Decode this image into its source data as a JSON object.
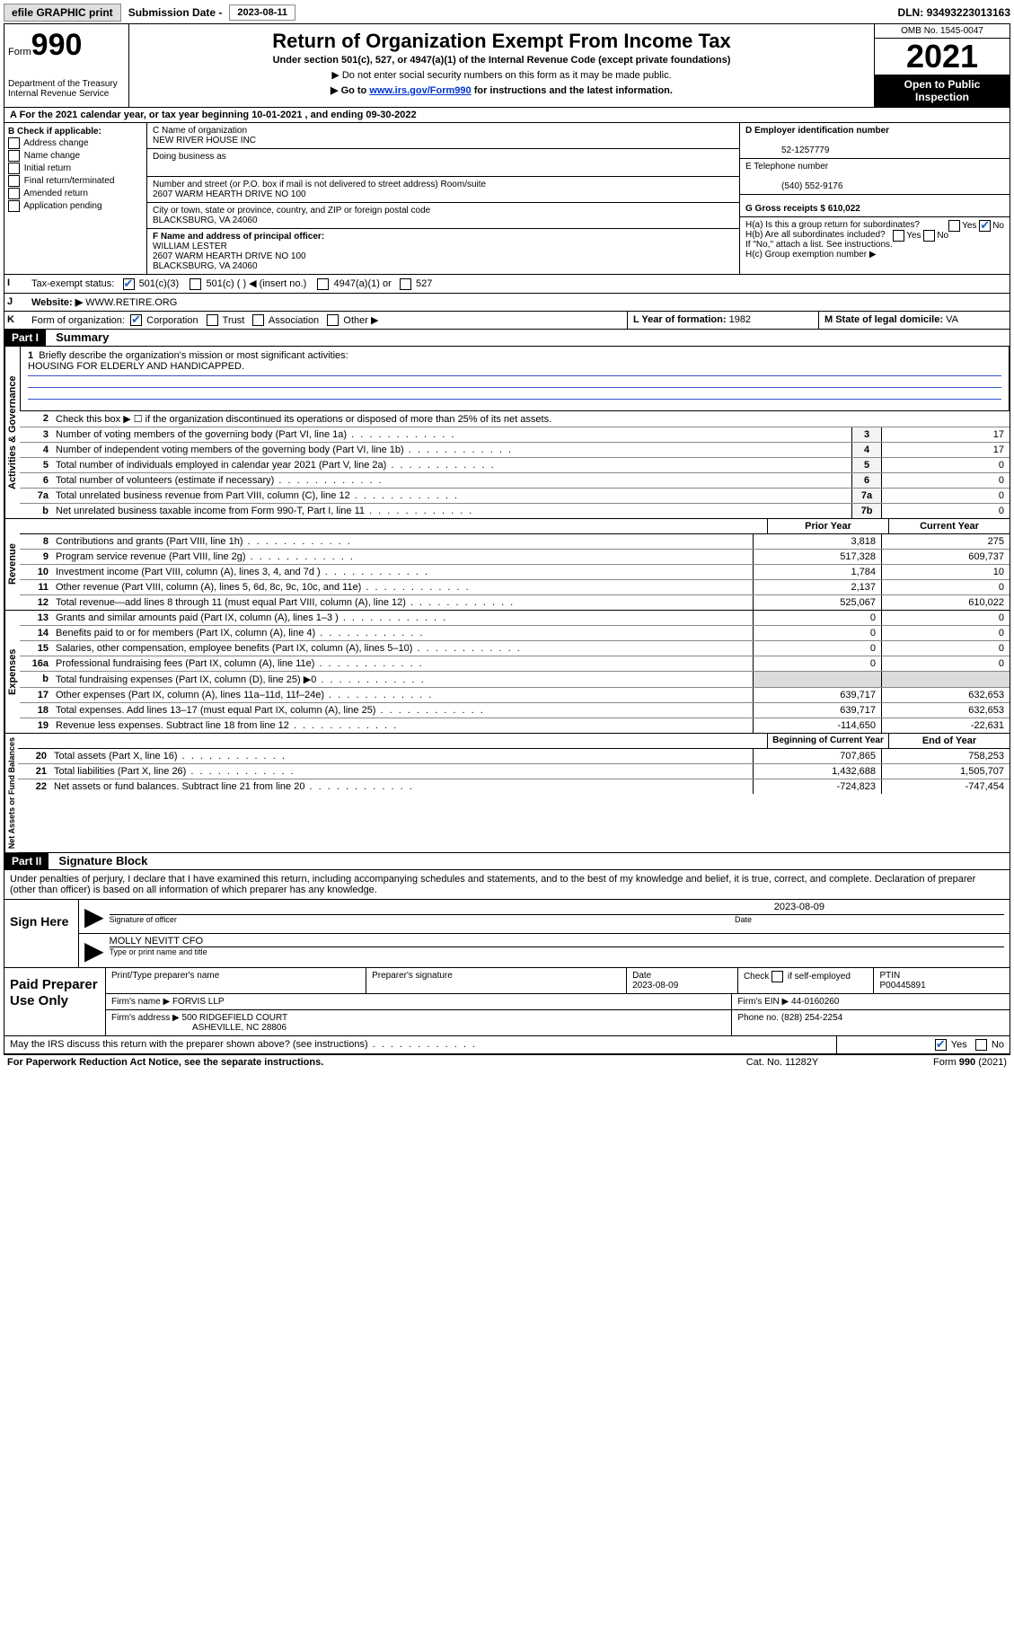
{
  "topbar": {
    "efile": "efile GRAPHIC print",
    "sub_label": "Submission Date -",
    "sub_date": "2023-08-11",
    "dln_label": "DLN:",
    "dln": "93493223013163"
  },
  "header": {
    "form_word": "Form",
    "form_num": "990",
    "dept": "Department of the Treasury\nInternal Revenue Service",
    "title": "Return of Organization Exempt From Income Tax",
    "sub1": "Under section 501(c), 527, or 4947(a)(1) of the Internal Revenue Code (except private foundations)",
    "sub2a": "▶ Do not enter social security numbers on this form as it may be made public.",
    "sub2b_pre": "▶ Go to ",
    "sub2b_link": "www.irs.gov/Form990",
    "sub2b_post": " for instructions and the latest information.",
    "omb": "OMB No. 1545-0047",
    "year": "2021",
    "inspection": "Open to Public Inspection"
  },
  "row_a": "A For the 2021 calendar year, or tax year beginning 10-01-2021   , and ending 09-30-2022",
  "col_b": {
    "title": "B Check if applicable:",
    "items": [
      "Address change",
      "Name change",
      "Initial return",
      "Final return/terminated",
      "Amended return",
      "Application pending"
    ]
  },
  "col_c": {
    "c_label": "C Name of organization",
    "org": "NEW RIVER HOUSE INC",
    "dba_label": "Doing business as",
    "addr_label": "Number and street (or P.O. box if mail is not delivered to street address)       Room/suite",
    "addr": "2607 WARM HEARTH DRIVE NO 100",
    "city_label": "City or town, state or province, country, and ZIP or foreign postal code",
    "city": "BLACKSBURG, VA  24060",
    "f_label": "F Name and address of principal officer:",
    "officer": "WILLIAM LESTER",
    "officer_addr1": "2607 WARM HEARTH DRIVE NO 100",
    "officer_addr2": "BLACKSBURG, VA  24060"
  },
  "col_d": {
    "d_label": "D Employer identification number",
    "ein": "52-1257779",
    "e_label": "E Telephone number",
    "phone": "(540) 552-9176",
    "g_label": "G Gross receipts $",
    "gross": "610,022",
    "ha": "H(a)  Is this a group return for subordinates?",
    "hb": "H(b)  Are all subordinates included?",
    "hb_note": "If \"No,\" attach a list. See instructions.",
    "hc": "H(c)  Group exemption number ▶"
  },
  "row_i": {
    "lbl": "I",
    "text": "Tax-exempt status:",
    "opts": [
      "501(c)(3)",
      "501(c) (   ) ◀ (insert no.)",
      "4947(a)(1) or",
      "527"
    ]
  },
  "row_j": {
    "lbl": "J",
    "text": "Website: ▶",
    "val": "WWW.RETIRE.ORG"
  },
  "row_k": {
    "lbl": "K",
    "text": "Form of organization:",
    "opts": [
      "Corporation",
      "Trust",
      "Association",
      "Other ▶"
    ],
    "l_label": "L Year of formation:",
    "l_val": "1982",
    "m_label": "M State of legal domicile:",
    "m_val": "VA"
  },
  "part1": {
    "label": "Part I",
    "title": "Summary"
  },
  "mission": {
    "num": "1",
    "text": "Briefly describe the organization's mission or most significant activities:",
    "val": "HOUSING FOR ELDERLY AND HANDICAPPED."
  },
  "gov_lines": [
    {
      "num": "2",
      "desc": "Check this box ▶ ☐  if the organization discontinued its operations or disposed of more than 25% of its net assets.",
      "box": "",
      "v1": "",
      "v2": ""
    },
    {
      "num": "3",
      "desc": "Number of voting members of the governing body (Part VI, line 1a)",
      "box": "3",
      "v2": "17"
    },
    {
      "num": "4",
      "desc": "Number of independent voting members of the governing body (Part VI, line 1b)",
      "box": "4",
      "v2": "17"
    },
    {
      "num": "5",
      "desc": "Total number of individuals employed in calendar year 2021 (Part V, line 2a)",
      "box": "5",
      "v2": "0"
    },
    {
      "num": "6",
      "desc": "Total number of volunteers (estimate if necessary)",
      "box": "6",
      "v2": "0"
    },
    {
      "num": "7a",
      "desc": "Total unrelated business revenue from Part VIII, column (C), line 12",
      "box": "7a",
      "v2": "0"
    },
    {
      "num": "b",
      "desc": "Net unrelated business taxable income from Form 990-T, Part I, line 11",
      "box": "7b",
      "v2": "0"
    }
  ],
  "col_hdr": {
    "h1": "Prior Year",
    "h2": "Current Year"
  },
  "rev_lines": [
    {
      "num": "8",
      "desc": "Contributions and grants (Part VIII, line 1h)",
      "v1": "3,818",
      "v2": "275"
    },
    {
      "num": "9",
      "desc": "Program service revenue (Part VIII, line 2g)",
      "v1": "517,328",
      "v2": "609,737"
    },
    {
      "num": "10",
      "desc": "Investment income (Part VIII, column (A), lines 3, 4, and 7d )",
      "v1": "1,784",
      "v2": "10"
    },
    {
      "num": "11",
      "desc": "Other revenue (Part VIII, column (A), lines 5, 6d, 8c, 9c, 10c, and 11e)",
      "v1": "2,137",
      "v2": "0"
    },
    {
      "num": "12",
      "desc": "Total revenue—add lines 8 through 11 (must equal Part VIII, column (A), line 12)",
      "v1": "525,067",
      "v2": "610,022"
    }
  ],
  "exp_lines": [
    {
      "num": "13",
      "desc": "Grants and similar amounts paid (Part IX, column (A), lines 1–3 )",
      "v1": "0",
      "v2": "0"
    },
    {
      "num": "14",
      "desc": "Benefits paid to or for members (Part IX, column (A), line 4)",
      "v1": "0",
      "v2": "0"
    },
    {
      "num": "15",
      "desc": "Salaries, other compensation, employee benefits (Part IX, column (A), lines 5–10)",
      "v1": "0",
      "v2": "0"
    },
    {
      "num": "16a",
      "desc": "Professional fundraising fees (Part IX, column (A), line 11e)",
      "v1": "0",
      "v2": "0"
    },
    {
      "num": "b",
      "desc": "Total fundraising expenses (Part IX, column (D), line 25) ▶0",
      "v1": "shade",
      "v2": "shade"
    },
    {
      "num": "17",
      "desc": "Other expenses (Part IX, column (A), lines 11a–11d, 11f–24e)",
      "v1": "639,717",
      "v2": "632,653"
    },
    {
      "num": "18",
      "desc": "Total expenses. Add lines 13–17 (must equal Part IX, column (A), line 25)",
      "v1": "639,717",
      "v2": "632,653"
    },
    {
      "num": "19",
      "desc": "Revenue less expenses. Subtract line 18 from line 12",
      "v1": "-114,650",
      "v2": "-22,631"
    }
  ],
  "net_hdr": {
    "h1": "Beginning of Current Year",
    "h2": "End of Year"
  },
  "net_lines": [
    {
      "num": "20",
      "desc": "Total assets (Part X, line 16)",
      "v1": "707,865",
      "v2": "758,253"
    },
    {
      "num": "21",
      "desc": "Total liabilities (Part X, line 26)",
      "v1": "1,432,688",
      "v2": "1,505,707"
    },
    {
      "num": "22",
      "desc": "Net assets or fund balances. Subtract line 21 from line 20",
      "v1": "-724,823",
      "v2": "-747,454"
    }
  ],
  "part2": {
    "label": "Part II",
    "title": "Signature Block"
  },
  "penalty": "Under penalties of perjury, I declare that I have examined this return, including accompanying schedules and statements, and to the best of my knowledge and belief, it is true, correct, and complete. Declaration of preparer (other than officer) is based on all information of which preparer has any knowledge.",
  "sign": {
    "label": "Sign Here",
    "sig_label": "Signature of officer",
    "date_label": "Date",
    "date": "2023-08-09",
    "name": "MOLLY NEVITT  CFO",
    "name_label": "Type or print name and title"
  },
  "paid": {
    "label": "Paid Preparer Use Only",
    "h1": "Print/Type preparer's name",
    "h2": "Preparer's signature",
    "h3": "Date",
    "date": "2023-08-09",
    "h4_pre": "Check",
    "h4_post": "if self-employed",
    "h5": "PTIN",
    "ptin": "P00445891",
    "firm_label": "Firm's name    ▶",
    "firm": "FORVIS LLP",
    "ein_label": "Firm's EIN ▶",
    "ein": "44-0160260",
    "addr_label": "Firm's address ▶",
    "addr1": "500 RIDGEFIELD COURT",
    "addr2": "ASHEVILLE, NC  28806",
    "phone_label": "Phone no.",
    "phone": "(828) 254-2254"
  },
  "discuss": "May the IRS discuss this return with the preparer shown above? (see instructions)",
  "footer": {
    "l": "For Paperwork Reduction Act Notice, see the separate instructions.",
    "c": "Cat. No. 11282Y",
    "r": "Form 990 (2021)"
  },
  "side_labels": {
    "gov": "Activities & Governance",
    "rev": "Revenue",
    "exp": "Expenses",
    "net": "Net Assets or Fund Balances"
  }
}
